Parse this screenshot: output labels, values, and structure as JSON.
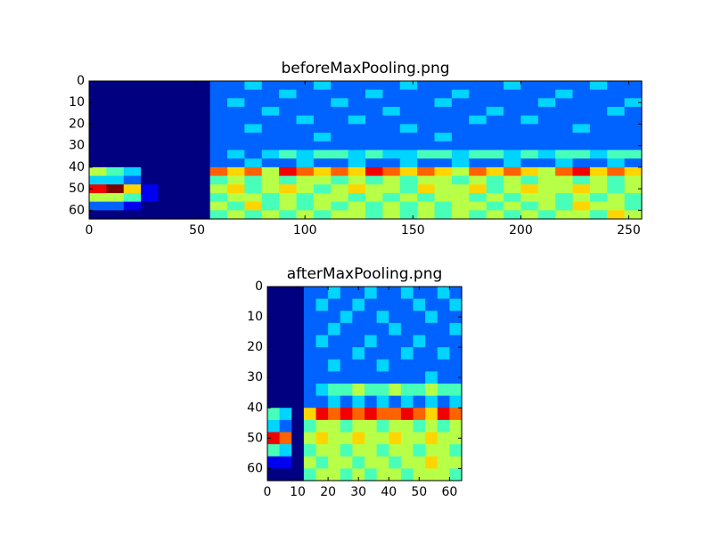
{
  "chart_data": [
    {
      "type": "heatmap",
      "title": "beforeMaxPooling.png",
      "colormap": "jet",
      "clim": [
        0,
        9
      ],
      "xlim": [
        0,
        256
      ],
      "ylim": [
        64,
        0
      ],
      "xticks": [
        0,
        50,
        100,
        150,
        200,
        250
      ],
      "yticks": [
        0,
        10,
        20,
        30,
        40,
        50,
        60
      ],
      "values": [
        [
          0,
          0,
          0,
          0,
          0,
          0,
          0,
          2,
          2,
          3,
          2,
          2,
          2,
          3,
          2,
          2,
          2,
          2,
          3,
          2,
          2,
          2,
          2,
          2,
          3,
          2,
          2,
          2,
          2,
          3,
          2,
          2
        ],
        [
          0,
          0,
          0,
          0,
          0,
          0,
          0,
          2,
          2,
          2,
          2,
          3,
          2,
          2,
          2,
          2,
          3,
          2,
          2,
          2,
          2,
          3,
          2,
          2,
          2,
          2,
          2,
          3,
          2,
          2,
          2,
          2
        ],
        [
          0,
          0,
          0,
          0,
          0,
          0,
          0,
          2,
          3,
          2,
          2,
          2,
          2,
          2,
          3,
          2,
          2,
          2,
          2,
          2,
          3,
          2,
          2,
          2,
          2,
          2,
          3,
          2,
          2,
          2,
          2,
          3
        ],
        [
          0,
          0,
          0,
          0,
          0,
          0,
          0,
          2,
          2,
          2,
          3,
          2,
          2,
          2,
          2,
          2,
          2,
          3,
          2,
          2,
          2,
          2,
          2,
          3,
          2,
          2,
          2,
          2,
          2,
          2,
          3,
          2
        ],
        [
          0,
          0,
          0,
          0,
          0,
          0,
          0,
          2,
          2,
          2,
          2,
          2,
          3,
          2,
          2,
          3,
          2,
          2,
          2,
          2,
          2,
          2,
          3,
          2,
          2,
          3,
          2,
          2,
          2,
          2,
          2,
          2
        ],
        [
          0,
          0,
          0,
          0,
          0,
          0,
          0,
          2,
          2,
          3,
          2,
          2,
          2,
          2,
          2,
          2,
          2,
          2,
          3,
          2,
          2,
          2,
          2,
          2,
          2,
          2,
          2,
          2,
          3,
          2,
          2,
          2
        ],
        [
          0,
          0,
          0,
          0,
          0,
          0,
          0,
          2,
          2,
          2,
          2,
          2,
          2,
          3,
          2,
          2,
          2,
          2,
          2,
          2,
          3,
          2,
          2,
          2,
          2,
          2,
          2,
          2,
          2,
          2,
          2,
          2
        ],
        [
          0,
          0,
          0,
          0,
          0,
          0,
          0,
          2,
          2,
          2,
          2,
          2,
          2,
          2,
          2,
          2,
          2,
          2,
          2,
          2,
          2,
          2,
          2,
          2,
          2,
          2,
          2,
          2,
          2,
          2,
          2,
          2
        ],
        [
          0,
          0,
          0,
          0,
          0,
          0,
          0,
          2,
          3,
          2,
          3,
          4,
          3,
          4,
          4,
          3,
          4,
          3,
          3,
          4,
          4,
          3,
          4,
          4,
          3,
          4,
          3,
          4,
          4,
          3,
          4,
          4
        ],
        [
          0,
          0,
          0,
          0,
          0,
          0,
          0,
          2,
          2,
          3,
          2,
          2,
          3,
          2,
          2,
          3,
          2,
          2,
          3,
          2,
          2,
          3,
          2,
          2,
          3,
          2,
          2,
          3,
          2,
          2,
          3,
          2
        ],
        [
          5,
          4,
          3,
          0,
          0,
          0,
          0,
          7,
          6,
          7,
          5,
          8,
          7,
          6,
          7,
          6,
          8,
          7,
          6,
          7,
          6,
          5,
          7,
          6,
          7,
          6,
          5,
          7,
          8,
          6,
          7,
          6
        ],
        [
          3,
          3,
          2,
          0,
          0,
          0,
          0,
          4,
          5,
          4,
          5,
          4,
          5,
          5,
          4,
          5,
          4,
          5,
          4,
          5,
          5,
          4,
          5,
          4,
          5,
          4,
          5,
          5,
          4,
          5,
          4,
          5
        ],
        [
          8,
          9,
          6,
          1,
          0,
          0,
          0,
          5,
          6,
          4,
          5,
          6,
          5,
          4,
          5,
          6,
          5,
          5,
          4,
          6,
          5,
          5,
          6,
          4,
          5,
          6,
          5,
          5,
          6,
          5,
          4,
          5
        ],
        [
          5,
          5,
          4,
          1,
          0,
          0,
          0,
          4,
          5,
          5,
          4,
          5,
          4,
          5,
          5,
          4,
          5,
          4,
          5,
          4,
          5,
          5,
          4,
          5,
          4,
          5,
          5,
          4,
          5,
          4,
          5,
          4
        ],
        [
          2,
          2,
          1,
          0,
          0,
          0,
          0,
          5,
          4,
          6,
          4,
          5,
          4,
          5,
          4,
          5,
          4,
          5,
          4,
          5,
          4,
          5,
          5,
          4,
          5,
          4,
          5,
          4,
          6,
          5,
          5,
          4
        ],
        [
          0,
          0,
          0,
          0,
          0,
          0,
          0,
          4,
          5,
          4,
          5,
          4,
          5,
          4,
          5,
          5,
          4,
          5,
          4,
          5,
          4,
          5,
          4,
          5,
          4,
          5,
          4,
          5,
          5,
          4,
          6,
          5
        ]
      ]
    },
    {
      "type": "heatmap",
      "title": "afterMaxPooling.png",
      "colormap": "jet",
      "clim": [
        0,
        9
      ],
      "xlim": [
        0,
        64
      ],
      "ylim": [
        64,
        0
      ],
      "xticks": [
        0,
        10,
        20,
        30,
        40,
        50,
        60
      ],
      "yticks": [
        0,
        10,
        20,
        30,
        40,
        50,
        60
      ],
      "values": [
        [
          0,
          0,
          0,
          2,
          2,
          3,
          2,
          2,
          3,
          2,
          2,
          3,
          2,
          2,
          3,
          2
        ],
        [
          0,
          0,
          0,
          2,
          3,
          2,
          2,
          3,
          2,
          2,
          2,
          2,
          3,
          2,
          2,
          3
        ],
        [
          0,
          0,
          0,
          2,
          2,
          2,
          3,
          2,
          2,
          3,
          2,
          2,
          2,
          3,
          2,
          2
        ],
        [
          0,
          0,
          0,
          2,
          2,
          3,
          2,
          2,
          2,
          2,
          3,
          2,
          2,
          2,
          2,
          3
        ],
        [
          0,
          0,
          0,
          2,
          3,
          2,
          2,
          2,
          3,
          2,
          2,
          2,
          3,
          2,
          2,
          2
        ],
        [
          0,
          0,
          0,
          2,
          2,
          2,
          2,
          3,
          2,
          2,
          2,
          3,
          2,
          2,
          3,
          2
        ],
        [
          0,
          0,
          0,
          2,
          2,
          3,
          2,
          2,
          2,
          3,
          2,
          2,
          2,
          2,
          2,
          2
        ],
        [
          0,
          0,
          0,
          2,
          2,
          2,
          2,
          2,
          2,
          2,
          2,
          2,
          2,
          3,
          2,
          2
        ],
        [
          0,
          0,
          0,
          2,
          3,
          4,
          4,
          5,
          4,
          4,
          5,
          4,
          4,
          5,
          4,
          4
        ],
        [
          0,
          0,
          0,
          2,
          2,
          3,
          2,
          3,
          2,
          3,
          2,
          3,
          2,
          3,
          2,
          3
        ],
        [
          4,
          3,
          0,
          6,
          8,
          7,
          8,
          7,
          8,
          7,
          7,
          8,
          7,
          6,
          8,
          7
        ],
        [
          3,
          2,
          0,
          4,
          5,
          5,
          4,
          5,
          5,
          4,
          5,
          5,
          4,
          5,
          4,
          5
        ],
        [
          8,
          7,
          0,
          5,
          6,
          5,
          5,
          6,
          5,
          5,
          6,
          5,
          5,
          6,
          5,
          5
        ],
        [
          4,
          3,
          0,
          4,
          5,
          5,
          4,
          5,
          5,
          4,
          5,
          5,
          4,
          5,
          5,
          4
        ],
        [
          1,
          1,
          0,
          5,
          4,
          5,
          5,
          4,
          5,
          5,
          4,
          5,
          5,
          6,
          5,
          5
        ],
        [
          0,
          0,
          0,
          4,
          5,
          5,
          4,
          5,
          4,
          5,
          5,
          4,
          5,
          5,
          5,
          4
        ]
      ]
    }
  ]
}
